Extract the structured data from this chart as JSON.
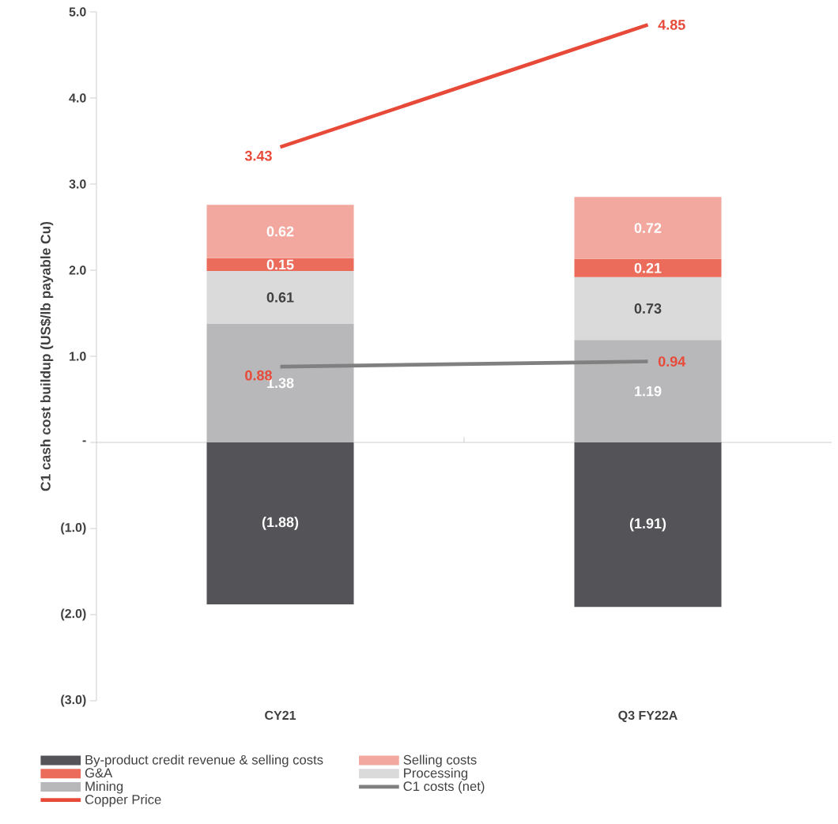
{
  "chart_data": {
    "type": "bar",
    "stacked": true,
    "ylabel": "C1 cash cost buildup (US$/lb payable Cu)",
    "categories": [
      "CY21",
      "Q3 FY22A"
    ],
    "ylim": [
      -3,
      5
    ],
    "yticks": [
      {
        "value": 5,
        "label": "5.0"
      },
      {
        "value": 4,
        "label": "4.0"
      },
      {
        "value": 3,
        "label": "3.0"
      },
      {
        "value": 2,
        "label": "2.0"
      },
      {
        "value": 1,
        "label": "1.0"
      },
      {
        "value": 0,
        "label": "-"
      },
      {
        "value": -1,
        "label": "(1.0)"
      },
      {
        "value": -2,
        "label": "(2.0)"
      },
      {
        "value": -3,
        "label": "(3.0)"
      }
    ],
    "legend": "bottom",
    "series": [
      {
        "name": "By-product credit revenue & selling costs",
        "color": "#535358",
        "values": [
          -1.88,
          -1.91
        ],
        "value_labels": [
          "(1.88)",
          "(1.91)"
        ]
      },
      {
        "name": "Mining",
        "color": "#b8b8ba",
        "values": [
          1.38,
          1.19
        ],
        "value_labels": [
          "1.38",
          "1.19"
        ]
      },
      {
        "name": "Processing",
        "color": "#dadada",
        "values": [
          0.61,
          0.73
        ],
        "value_labels": [
          "0.61",
          "0.73"
        ]
      },
      {
        "name": "G&A",
        "color": "#ec6c5c",
        "values": [
          0.15,
          0.21
        ],
        "value_labels": [
          "0.15",
          "0.21"
        ]
      },
      {
        "name": "Selling costs",
        "color": "#f2a89e",
        "values": [
          0.62,
          0.72
        ],
        "value_labels": [
          "0.62",
          "0.72"
        ]
      },
      {
        "type": "line",
        "name": "C1 costs (net)",
        "color": "#808080",
        "values": [
          0.88,
          0.94
        ],
        "value_labels": [
          "0.88",
          "0.94"
        ]
      },
      {
        "type": "line",
        "name": "Copper Price",
        "color": "#e84a3a",
        "values": [
          3.43,
          4.85
        ],
        "value_labels": [
          "3.43",
          "4.85"
        ]
      }
    ]
  }
}
